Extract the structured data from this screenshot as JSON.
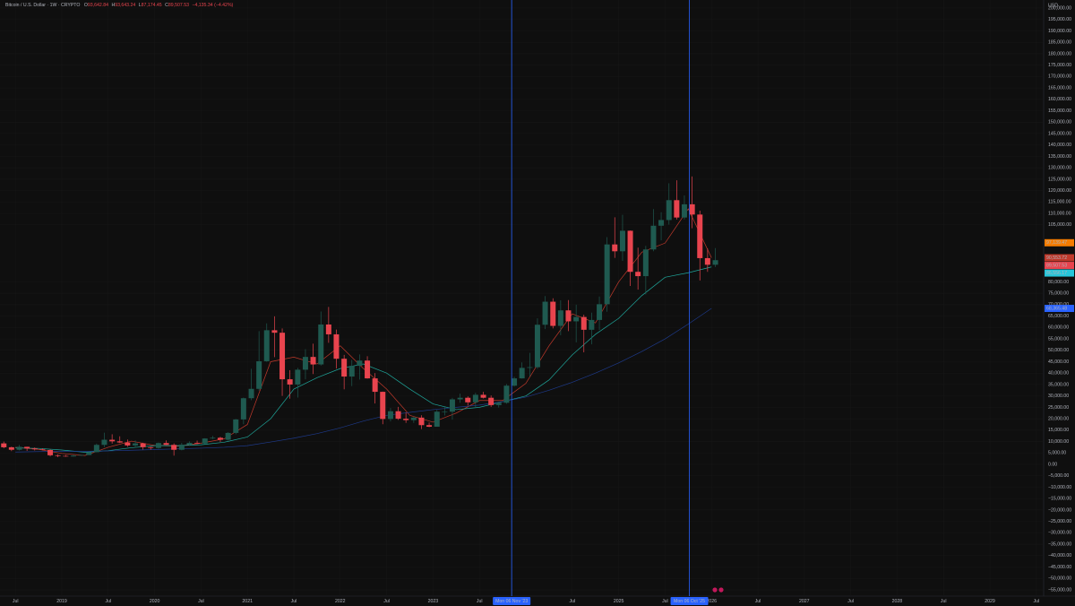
{
  "chart_data": {
    "type": "candlestick",
    "header": {
      "symbol": "Bitcoin / U.S. Dollar · 1W · CRYPTO",
      "fields": [
        {
          "key": "O",
          "value": "93,642.84"
        },
        {
          "key": "H",
          "value": "93,643.24"
        },
        {
          "key": "L",
          "value": "87,174.45"
        },
        {
          "key": "C",
          "value": "89,507.53"
        }
      ],
      "change": "−4,135.34 (−4.42%)"
    },
    "currency": "USD",
    "up_color": "#1f5a50",
    "down_color": "#e8444e",
    "xlim": [
      2018.334,
      2029.579
    ],
    "ylim": [
      -57750,
      203536
    ],
    "x": [
      2018.375,
      2018.458,
      2018.542,
      2018.625,
      2018.708,
      2018.792,
      2018.875,
      2018.958,
      2019.042,
      2019.125,
      2019.208,
      2019.292,
      2019.375,
      2019.458,
      2019.542,
      2019.625,
      2019.708,
      2019.792,
      2019.875,
      2019.958,
      2020.042,
      2020.125,
      2020.208,
      2020.292,
      2020.375,
      2020.458,
      2020.542,
      2020.625,
      2020.708,
      2020.792,
      2020.875,
      2020.958,
      2021.042,
      2021.125,
      2021.208,
      2021.292,
      2021.375,
      2021.458,
      2021.542,
      2021.625,
      2021.708,
      2021.792,
      2021.875,
      2021.958,
      2022.042,
      2022.125,
      2022.208,
      2022.292,
      2022.375,
      2022.458,
      2022.542,
      2022.625,
      2022.708,
      2022.792,
      2022.875,
      2022.958,
      2023.042,
      2023.125,
      2023.208,
      2023.292,
      2023.375,
      2023.458,
      2023.542,
      2023.625,
      2023.708,
      2023.792,
      2023.875,
      2023.958,
      2024.042,
      2024.125,
      2024.208,
      2024.292,
      2024.375,
      2024.458,
      2024.542,
      2024.625,
      2024.708,
      2024.792,
      2024.875,
      2024.958,
      2025.042,
      2025.125,
      2025.208,
      2025.292,
      2025.375,
      2025.458,
      2025.542,
      2025.625,
      2025.708,
      2025.792,
      2025.875,
      2025.958,
      2026.042
    ],
    "open": [
      9200,
      7500,
      6400,
      7700,
      7000,
      6600,
      6300,
      4000,
      3700,
      3450,
      3850,
      4100,
      5350,
      8550,
      10800,
      10100,
      9600,
      8300,
      9200,
      7550,
      7200,
      9350,
      8550,
      6400,
      8650,
      9450,
      9150,
      11350,
      11650,
      10800,
      13800,
      19700,
      29000,
      33100,
      45200,
      58800,
      57700,
      37300,
      35000,
      41500,
      47100,
      43800,
      61300,
      57000,
      46300,
      38500,
      43200,
      45500,
      37700,
      31800,
      19900,
      23300,
      20000,
      19400,
      20500,
      17200,
      16500,
      23100,
      23100,
      28500,
      29200,
      27200,
      30500,
      29200,
      26000,
      27000,
      34500,
      37700,
      42300,
      42600,
      61200,
      71300,
      60700,
      67500,
      62700,
      64600,
      59000,
      63300,
      70200,
      96400,
      93400,
      102400,
      84400,
      82500,
      94200,
      104600,
      107100,
      115800,
      108200,
      114000,
      109500,
      90400,
      87500
    ],
    "high": [
      9990,
      7780,
      8500,
      7770,
      7400,
      7000,
      6600,
      4400,
      4100,
      4200,
      4150,
      5600,
      9100,
      13900,
      13200,
      12300,
      10900,
      10500,
      9500,
      7750,
      9600,
      10500,
      9200,
      9450,
      10100,
      10400,
      11450,
      12500,
      12100,
      14100,
      19900,
      29300,
      41900,
      58400,
      61800,
      64900,
      59600,
      41300,
      42300,
      50500,
      52900,
      67000,
      69000,
      59100,
      48000,
      45800,
      48200,
      47400,
      40000,
      31900,
      24700,
      25200,
      22700,
      21000,
      21500,
      18400,
      23900,
      25200,
      29200,
      31000,
      29800,
      31400,
      31800,
      30200,
      27500,
      35200,
      38400,
      44700,
      48900,
      64000,
      73800,
      72800,
      71900,
      72000,
      70000,
      65600,
      66500,
      73600,
      99600,
      108300,
      109400,
      102500,
      95000,
      95800,
      111900,
      110500,
      123200,
      124500,
      117900,
      126200,
      111200,
      94600,
      94800
    ],
    "low": [
      7050,
      5800,
      6100,
      5880,
      6100,
      6200,
      3500,
      3150,
      3350,
      3400,
      3700,
      4050,
      5300,
      7500,
      9100,
      9400,
      7700,
      7300,
      6500,
      6450,
      6850,
      8500,
      3850,
      6150,
      8100,
      8900,
      8900,
      11100,
      9850,
      10400,
      13200,
      17600,
      28100,
      32300,
      45000,
      47000,
      30000,
      28800,
      29300,
      37300,
      39600,
      43300,
      53300,
      42000,
      32900,
      34300,
      37200,
      37600,
      26700,
      17600,
      18800,
      19500,
      18200,
      18200,
      15500,
      16300,
      16500,
      21400,
      19600,
      27000,
      25800,
      24800,
      28900,
      25200,
      24900,
      26600,
      34100,
      37600,
      38500,
      41900,
      59300,
      59600,
      56600,
      58400,
      53500,
      49100,
      52600,
      58900,
      66900,
      90500,
      89200,
      78200,
      76600,
      74500,
      93400,
      98200,
      105100,
      107300,
      107300,
      103500,
      80600,
      84400,
      86500
    ],
    "close": [
      7500,
      6400,
      7700,
      7000,
      6600,
      6300,
      4000,
      3700,
      3450,
      3850,
      4100,
      5350,
      8550,
      10800,
      10100,
      9600,
      8300,
      9200,
      7550,
      7200,
      9350,
      8550,
      6400,
      8650,
      9450,
      9150,
      11350,
      11650,
      10800,
      13800,
      19700,
      29000,
      33100,
      45200,
      58800,
      57700,
      37300,
      35000,
      41500,
      47100,
      43800,
      61300,
      57000,
      46300,
      38500,
      43200,
      45500,
      37700,
      31800,
      19900,
      23300,
      20000,
      19400,
      20500,
      17200,
      16500,
      23100,
      23100,
      28500,
      29200,
      27200,
      30500,
      29200,
      26000,
      27000,
      34500,
      37700,
      42300,
      42600,
      61200,
      71300,
      60700,
      67500,
      62700,
      64600,
      59000,
      63300,
      70200,
      96400,
      93400,
      102400,
      84400,
      82500,
      94200,
      104600,
      107100,
      115800,
      108200,
      114000,
      109500,
      90400,
      87500,
      89507.53
    ],
    "line_x": [
      2018.5,
      2018.75,
      2019.0,
      2019.25,
      2019.5,
      2019.75,
      2020.0,
      2020.25,
      2020.5,
      2020.75,
      2021.0,
      2021.25,
      2021.5,
      2021.75,
      2022.0,
      2022.25,
      2022.5,
      2022.75,
      2023.0,
      2023.25,
      2023.5,
      2023.75,
      2024.0,
      2024.25,
      2024.5,
      2024.75,
      2025.0,
      2025.25,
      2025.5,
      2025.75,
      2026.0
    ],
    "lines": [
      {
        "color": "#c0392b",
        "values": [
          7500,
          6600,
          4800,
          3900,
          7500,
          10200,
          8300,
          8000,
          9300,
          11200,
          17500,
          45000,
          47000,
          44000,
          52000,
          42000,
          33000,
          21500,
          18500,
          22500,
          28000,
          28000,
          35500,
          52000,
          66000,
          62000,
          80000,
          93000,
          97000,
          112000,
          90553.72
        ]
      },
      {
        "color": "#1fa59a",
        "values": [
          7200,
          7000,
          6300,
          5300,
          6000,
          7300,
          8200,
          8200,
          8600,
          9700,
          12000,
          20000,
          33000,
          38000,
          42000,
          44000,
          40000,
          33000,
          26500,
          24000,
          25000,
          27500,
          30000,
          37000,
          48000,
          57000,
          64000,
          74000,
          82000,
          84000,
          86556.17
        ]
      },
      {
        "color": "#1e3a8a",
        "values": [
          5400,
          5600,
          5700,
          5700,
          5900,
          6200,
          6500,
          6800,
          7100,
          7500,
          8200,
          9800,
          11500,
          13500,
          16000,
          19000,
          21500,
          22800,
          24000,
          25000,
          26000,
          27500,
          29500,
          32500,
          36000,
          40000,
          44500,
          49500,
          55000,
          61500,
          68365.48
        ]
      }
    ],
    "price_labels": [
      {
        "value": 97139.47,
        "label": "97,139.47",
        "color": "#f57c00"
      },
      {
        "value": 90553.72,
        "label": "90,553.72",
        "color": "#c0392b"
      },
      {
        "value": 89507.53,
        "label": "89,507.53",
        "color": "#e8444e"
      },
      {
        "value": 86556.17,
        "label": "86,556.17",
        "color": "#26c6da"
      },
      {
        "value": 68365.48,
        "label": "68,365.48",
        "color": "#2962ff"
      }
    ],
    "markers": [
      {
        "value": 2023.847,
        "label": "Mon 06 Nov '23"
      },
      {
        "value": 2025.762,
        "label": "Mon 06 Oct '25"
      }
    ],
    "xticks": [
      {
        "value": 2018.5,
        "label": "Jul"
      },
      2019,
      {
        "value": 2019.5,
        "label": "Jul"
      },
      2020,
      {
        "value": 2020.5,
        "label": "Jul"
      },
      2021,
      {
        "value": 2021.5,
        "label": "Jul"
      },
      2022,
      {
        "value": 2022.5,
        "label": "Jul"
      },
      2023,
      {
        "value": 2023.5,
        "label": "Jul"
      },
      {
        "value": 2024.5,
        "label": "Jul"
      },
      2025,
      {
        "value": 2025.5,
        "label": "Jul"
      },
      2026,
      {
        "value": 2026.5,
        "label": "Jul"
      },
      2027,
      {
        "value": 2027.5,
        "label": "Jul"
      },
      2028,
      {
        "value": 2028.5,
        "label": "Jul"
      },
      2029,
      {
        "value": 2029.5,
        "label": "Jul"
      }
    ],
    "yticks": [
      {
        "value": 200000,
        "label": "200,000.00"
      },
      {
        "value": 195000,
        "label": "195,000.00"
      },
      {
        "value": 190000,
        "label": "190,000.00"
      },
      {
        "value": 185000,
        "label": "185,000.00"
      },
      {
        "value": 180000,
        "label": "180,000.00"
      },
      {
        "value": 175000,
        "label": "175,000.00"
      },
      {
        "value": 170000,
        "label": "170,000.00"
      },
      {
        "value": 165000,
        "label": "165,000.00"
      },
      {
        "value": 160000,
        "label": "160,000.00"
      },
      {
        "value": 155000,
        "label": "155,000.00"
      },
      {
        "value": 150000,
        "label": "150,000.00"
      },
      {
        "value": 145000,
        "label": "145,000.00"
      },
      {
        "value": 140000,
        "label": "140,000.00"
      },
      {
        "value": 135000,
        "label": "135,000.00"
      },
      {
        "value": 130000,
        "label": "130,000.00"
      },
      {
        "value": 125000,
        "label": "125,000.00"
      },
      {
        "value": 120000,
        "label": "120,000.00"
      },
      {
        "value": 115000,
        "label": "115,000.00"
      },
      {
        "value": 110000,
        "label": "110,000.00"
      },
      {
        "value": 105000,
        "label": "105,000.00"
      },
      {
        "value": 80000,
        "label": "80,000.00"
      },
      {
        "value": 75000,
        "label": "75,000.00"
      },
      {
        "value": 70000,
        "label": "70,000.00"
      },
      {
        "value": 65000,
        "label": "65,000.00"
      },
      {
        "value": 60000,
        "label": "60,000.00"
      },
      {
        "value": 55000,
        "label": "55,000.00"
      },
      {
        "value": 50000,
        "label": "50,000.00"
      },
      {
        "value": 45000,
        "label": "45,000.00"
      },
      {
        "value": 40000,
        "label": "40,000.00"
      },
      {
        "value": 35000,
        "label": "35,000.00"
      },
      {
        "value": 30000,
        "label": "30,000.00"
      },
      {
        "value": 25000,
        "label": "25,000.00"
      },
      {
        "value": 20000,
        "label": "20,000.00"
      },
      {
        "value": 15000,
        "label": "15,000.00"
      },
      {
        "value": 10000,
        "label": "10,000.00"
      },
      {
        "value": 5000,
        "label": "5,000.00"
      },
      {
        "value": 0,
        "label": "0.00"
      },
      {
        "value": -5000,
        "label": "−5,000.00"
      },
      {
        "value": -10000,
        "label": "−10,000.00"
      },
      {
        "value": -15000,
        "label": "−15,000.00"
      },
      {
        "value": -20000,
        "label": "−20,000.00"
      },
      {
        "value": -25000,
        "label": "−25,000.00"
      },
      {
        "value": -30000,
        "label": "−30,000.00"
      },
      {
        "value": -35000,
        "label": "−35,000.00"
      },
      {
        "value": -40000,
        "label": "−40,000.00"
      },
      {
        "value": -45000,
        "label": "−45,000.00"
      },
      {
        "value": -50000,
        "label": "−50,000.00"
      },
      {
        "value": -55000,
        "label": "−55,000.00"
      }
    ],
    "grid": true
  }
}
